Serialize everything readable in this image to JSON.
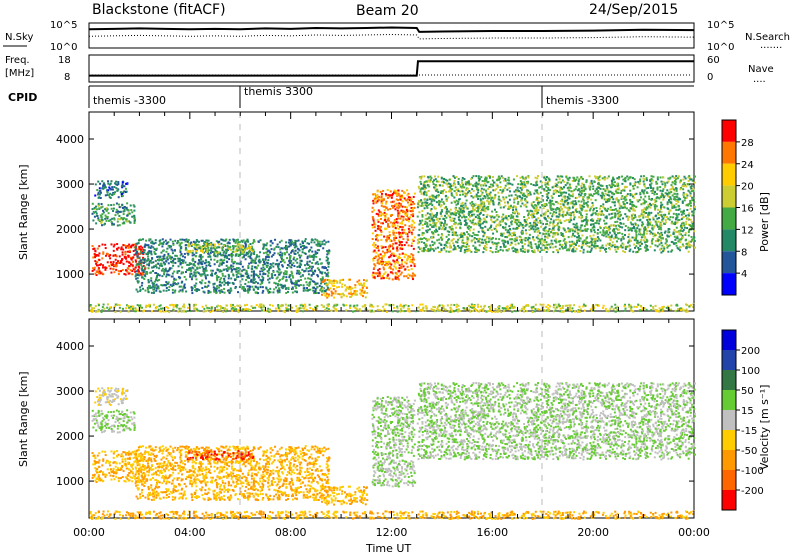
{
  "header": {
    "title": "Blackstone (fitACF)",
    "beam": "Beam 20",
    "date": "24/Sep/2015"
  },
  "noise_panel": {
    "left_label": "N.Sky",
    "left_ticks": [
      "10^5",
      "10^0"
    ],
    "right_ticks": [
      "10^5",
      "10^0"
    ],
    "right_label": "N.Search",
    "right_line": "......."
  },
  "freq_panel": {
    "left_label_1": "Freq.",
    "left_label_2": "[MHz]",
    "left_ticks": [
      "18",
      "8"
    ],
    "right_ticks": [
      "60",
      "0"
    ],
    "right_label": "Nave",
    "right_line": "...."
  },
  "cpid": {
    "label": "CPID",
    "segments": [
      {
        "label": "themis -3300",
        "start_hour": 0
      },
      {
        "label": "themis 3300",
        "start_hour": 6
      },
      {
        "label": "themis -3300",
        "start_hour": 18
      }
    ]
  },
  "power_colorbar": {
    "label": "Power [dB]",
    "ticks": [
      "28",
      "24",
      "20",
      "16",
      "12",
      "8",
      "4"
    ],
    "colors": [
      "#ff0000",
      "#ff7700",
      "#ffcc00",
      "#cccc33",
      "#44aa44",
      "#228866",
      "#225599",
      "#0000ff"
    ]
  },
  "velocity_colorbar": {
    "label": "Velocity [m s⁻¹]",
    "ticks": [
      "200",
      "100",
      "50",
      "15",
      "-15",
      "-50",
      "-100",
      "-200"
    ],
    "colors": [
      "#0000dd",
      "#2244aa",
      "#337744",
      "#66cc33",
      "#c0c0c0",
      "#ffcc00",
      "#ff9900",
      "#ff6600",
      "#ff0000"
    ]
  },
  "chart_data": {
    "type": "heatmap",
    "x_axis": {
      "label": "Time UT",
      "range_hours": [
        0,
        24
      ],
      "ticks": [
        "00:00",
        "04:00",
        "08:00",
        "12:00",
        "16:00",
        "20:00",
        "00:00"
      ]
    },
    "y_axis": {
      "label": "Slant Range [km]",
      "range_km": [
        180,
        4600
      ],
      "ticks": [
        "1000",
        "2000",
        "3000",
        "4000"
      ]
    },
    "panels": [
      "power",
      "velocity"
    ],
    "noise_sky_log10": [
      [
        0.0,
        3.8
      ],
      [
        1.0,
        3.9
      ],
      [
        2.0,
        4.0
      ],
      [
        3.0,
        3.9
      ],
      [
        4.0,
        3.8
      ],
      [
        5.0,
        3.9
      ],
      [
        6.0,
        3.8
      ],
      [
        7.0,
        4.0
      ],
      [
        8.0,
        3.9
      ],
      [
        9.0,
        4.1
      ],
      [
        10.0,
        4.0
      ],
      [
        11.0,
        4.1
      ],
      [
        12.0,
        4.2
      ],
      [
        13.0,
        4.1
      ],
      [
        13.1,
        3.2
      ],
      [
        14.0,
        3.3
      ],
      [
        16.0,
        3.4
      ],
      [
        18.0,
        3.4
      ],
      [
        20.0,
        3.5
      ],
      [
        22.0,
        3.7
      ],
      [
        24.0,
        3.6
      ]
    ],
    "freq_mhz": [
      [
        0,
        10.0
      ],
      [
        13.0,
        10.0
      ],
      [
        13.05,
        16.5
      ],
      [
        24,
        16.5
      ]
    ],
    "scatter_regions": [
      {
        "t_start": 0.1,
        "t_end": 2.2,
        "r_min": 1000,
        "r_max": 1700,
        "power_db": 28,
        "velocity": -50
      },
      {
        "t_start": 0.1,
        "t_end": 1.8,
        "r_min": 2100,
        "r_max": 2600,
        "power_db": 10,
        "velocity": 15
      },
      {
        "t_start": 0.2,
        "t_end": 1.5,
        "r_min": 2700,
        "r_max": 3100,
        "power_db": 6,
        "velocity": -15
      },
      {
        "t_start": 1.8,
        "t_end": 9.5,
        "r_min": 600,
        "r_max": 1800,
        "power_db": 8,
        "velocity": -50
      },
      {
        "t_start": 3.8,
        "t_end": 6.5,
        "r_min": 1500,
        "r_max": 1700,
        "power_db": 16,
        "velocity": -200
      },
      {
        "t_start": 9.2,
        "t_end": 11.0,
        "r_min": 500,
        "r_max": 900,
        "power_db": 20,
        "velocity": -50
      },
      {
        "t_start": 11.2,
        "t_end": 12.9,
        "r_min": 900,
        "r_max": 2900,
        "power_db": 24,
        "velocity": 15
      },
      {
        "t_start": 13.0,
        "t_end": 24.0,
        "r_min": 1500,
        "r_max": 3200,
        "power_db": 12,
        "velocity": 15
      },
      {
        "t_start": 0.0,
        "t_end": 24.0,
        "r_min": 180,
        "r_max": 350,
        "power_db": 16,
        "velocity": -50
      }
    ]
  }
}
